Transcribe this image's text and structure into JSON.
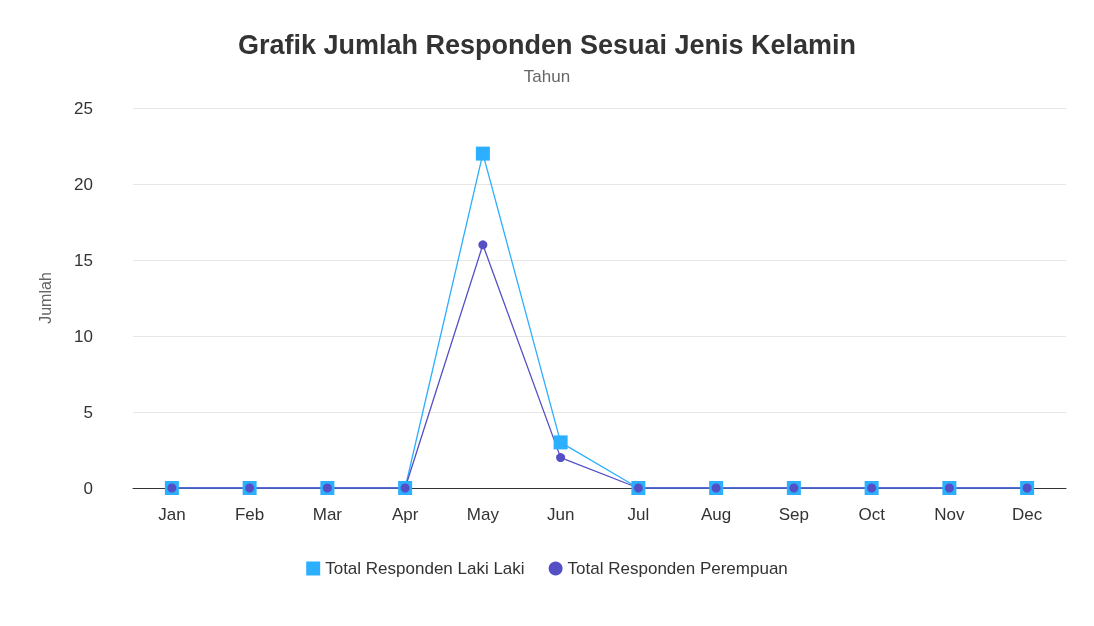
{
  "chart_data": {
    "type": "line",
    "title": "Grafik Jumlah Responden Sesuai Jenis Kelamin",
    "subtitle": "Tahun",
    "ylabel": "Jumlah",
    "categories": [
      "Jan",
      "Feb",
      "Mar",
      "Apr",
      "May",
      "Jun",
      "Jul",
      "Aug",
      "Sep",
      "Oct",
      "Nov",
      "Dec"
    ],
    "series": [
      {
        "name": "Total Responden Laki Laki",
        "color": "#2caffe",
        "marker": "square",
        "values": [
          0,
          0,
          0,
          0,
          22,
          3,
          0,
          0,
          0,
          0,
          0,
          0
        ]
      },
      {
        "name": "Total Responden Perempuan",
        "color": "#544fc5",
        "marker": "circle",
        "values": [
          0,
          0,
          0,
          0,
          16,
          2,
          0,
          0,
          0,
          0,
          0,
          0
        ]
      }
    ],
    "ylim": [
      0,
      25
    ],
    "yticks": [
      0,
      5,
      10,
      15,
      20,
      25
    ],
    "grid": "y",
    "legend": "bottom",
    "line_style": "solid"
  }
}
